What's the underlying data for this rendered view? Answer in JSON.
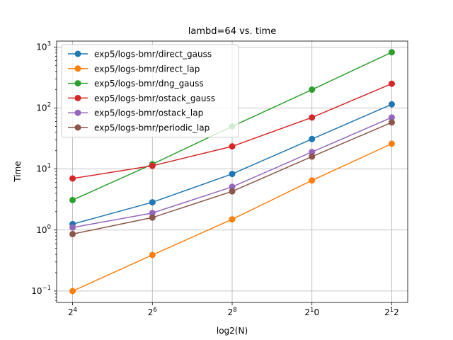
{
  "chart_data": {
    "type": "line",
    "title": "lambd=64 vs. time",
    "xlabel": "log2(N)",
    "ylabel": "Time",
    "y_scale": "log",
    "ylim": [
      0.065,
      1250
    ],
    "xlim": [
      3.6,
      12.4
    ],
    "grid": true,
    "legend_position": "top-left",
    "x": [
      4,
      6,
      8,
      10,
      12
    ],
    "x_tick_labels": [
      {
        "base": "2",
        "exp": "4"
      },
      {
        "base": "2",
        "exp": "6"
      },
      {
        "base": "2",
        "exp": "8"
      },
      {
        "base": "2",
        "exp": "1",
        "rest": "0"
      },
      {
        "base": "2",
        "exp": "1",
        "rest": "2"
      }
    ],
    "y_ticks": [
      {
        "value": 0.1,
        "base": "10",
        "exp": "−1"
      },
      {
        "value": 1,
        "base": "10",
        "exp": "0"
      },
      {
        "value": 10,
        "base": "10",
        "exp": "1"
      },
      {
        "value": 100,
        "base": "10",
        "exp": "2"
      },
      {
        "value": 1000,
        "base": "10",
        "exp": "3"
      }
    ],
    "series": [
      {
        "name": "exp5/logs-bmr/direct_gauss",
        "color": "#1f77b4",
        "values": [
          1.25,
          2.85,
          8.3,
          31,
          115
        ]
      },
      {
        "name": "exp5/logs-bmr/direct_lap",
        "color": "#ff7f0e",
        "values": [
          0.1,
          0.39,
          1.5,
          6.5,
          26
        ]
      },
      {
        "name": "exp5/logs-bmr/dng_gauss",
        "color": "#2ca02c",
        "values": [
          3.1,
          12,
          50,
          200,
          820
        ]
      },
      {
        "name": "exp5/logs-bmr/ostack_gauss",
        "color": "#d62728",
        "values": [
          7,
          11.3,
          23.5,
          70,
          250
        ]
      },
      {
        "name": "exp5/logs-bmr/ostack_lap",
        "color": "#9467bd",
        "values": [
          1.1,
          1.9,
          5.1,
          19,
          70
        ]
      },
      {
        "name": "exp5/logs-bmr/periodic_lap",
        "color": "#8c564b",
        "values": [
          0.86,
          1.6,
          4.3,
          16,
          58
        ]
      }
    ]
  }
}
